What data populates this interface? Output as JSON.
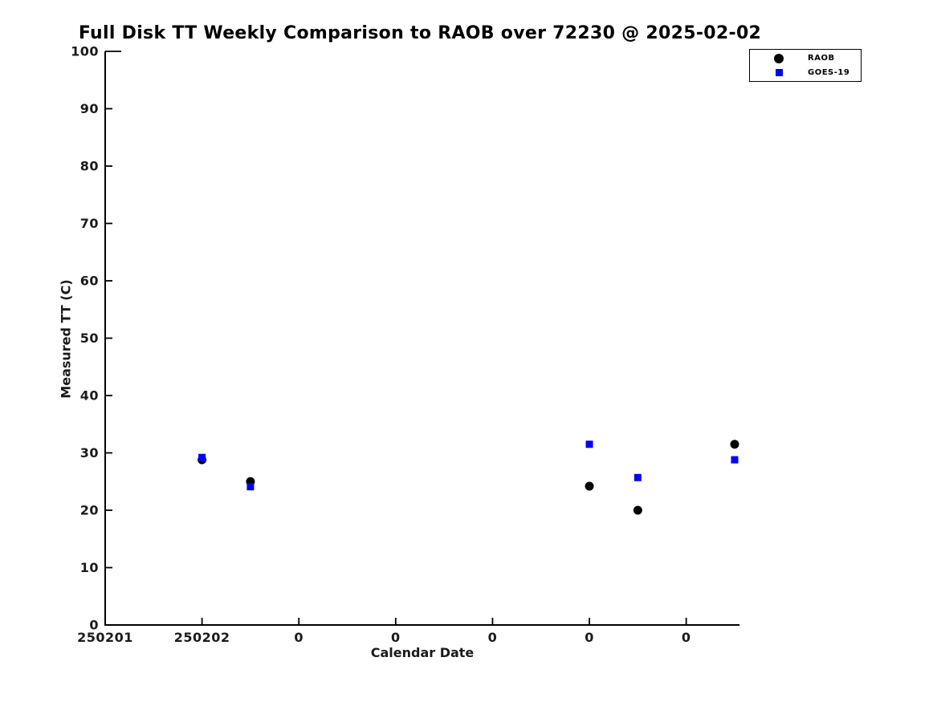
{
  "chart_data": {
    "type": "scatter",
    "title": "Full Disk TT Weekly Comparison to RAOB over 72230 @ 2025-02-02",
    "xlabel": "Calendar Date",
    "ylabel": "Measured TT (C)",
    "xlim": [
      0,
      6.55
    ],
    "ylim": [
      0,
      100
    ],
    "grid": false,
    "xticks": {
      "positions": [
        0,
        1,
        2,
        3,
        4,
        5,
        6
      ],
      "labels": [
        "250201",
        "250202",
        "0",
        "0",
        "0",
        "0",
        "0"
      ]
    },
    "yticks": {
      "positions": [
        0,
        10,
        20,
        30,
        40,
        50,
        60,
        70,
        80,
        90,
        100
      ],
      "labels": [
        "0",
        "10",
        "20",
        "30",
        "40",
        "50",
        "60",
        "70",
        "80",
        "90",
        "100"
      ]
    },
    "legend": {
      "position": "top-right-outside",
      "items": [
        {
          "label": "RAOB",
          "marker": "circle",
          "color": "#000000"
        },
        {
          "label": "GOES-19",
          "marker": "square",
          "color": "#0000ff"
        }
      ]
    },
    "series": [
      {
        "name": "RAOB",
        "marker": "circle",
        "color": "#000000",
        "x": [
          1.0,
          1.5,
          5.0,
          5.5,
          6.5
        ],
        "y": [
          28.8,
          25.0,
          24.2,
          20.0,
          31.5
        ]
      },
      {
        "name": "GOES-19",
        "marker": "square",
        "color": "#0000ff",
        "x": [
          1.0,
          1.5,
          5.0,
          5.5,
          6.5
        ],
        "y": [
          29.2,
          24.1,
          31.5,
          25.7,
          28.8
        ]
      }
    ]
  }
}
